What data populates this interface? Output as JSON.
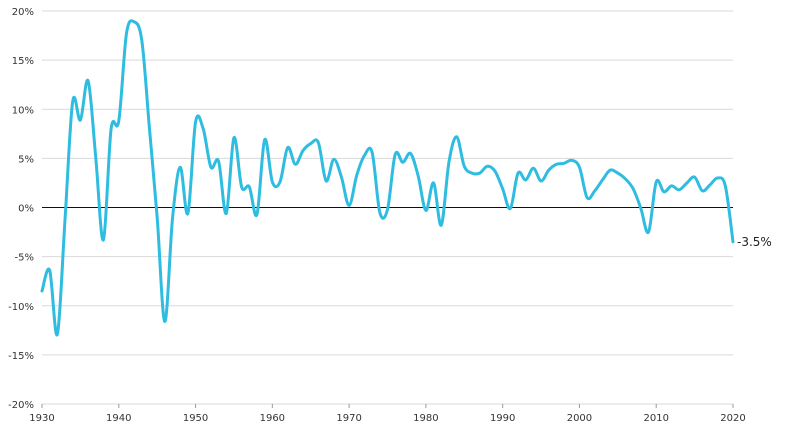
{
  "chart_data": {
    "type": "line",
    "title": "",
    "xlabel": "",
    "ylabel": "",
    "xlim": [
      1930,
      2020
    ],
    "ylim": [
      -20,
      20
    ],
    "x_ticks": [
      "1930",
      "1940",
      "1950",
      "1960",
      "1970",
      "1980",
      "1990",
      "2000",
      "2010",
      "2020"
    ],
    "y_ticks": [
      "20%",
      "15%",
      "10%",
      "5%",
      "0%",
      "-5%",
      "-10%",
      "-15%",
      "-20%"
    ],
    "grid": true,
    "legend": "none",
    "line_color": "#2ebde0",
    "end_label": "-3.5%",
    "series": [
      {
        "x": [
          1930,
          1931,
          1932,
          1933,
          1934,
          1935,
          1936,
          1937,
          1938,
          1939,
          1940,
          1941,
          1942,
          1943,
          1944,
          1945,
          1946,
          1947,
          1948,
          1949,
          1950,
          1951,
          1952,
          1953,
          1954,
          1955,
          1956,
          1957,
          1958,
          1959,
          1960,
          1961,
          1962,
          1963,
          1964,
          1965,
          1966,
          1967,
          1968,
          1969,
          1970,
          1971,
          1972,
          1973,
          1974,
          1975,
          1976,
          1977,
          1978,
          1979,
          1980,
          1981,
          1982,
          1983,
          1984,
          1985,
          1986,
          1987,
          1988,
          1989,
          1990,
          1991,
          1992,
          1993,
          1994,
          1995,
          1996,
          1997,
          1998,
          1999,
          2000,
          2001,
          2002,
          2003,
          2004,
          2005,
          2006,
          2007,
          2008,
          2009,
          2010,
          2011,
          2012,
          2013,
          2014,
          2015,
          2016,
          2017,
          2018,
          2019,
          2020
        ],
        "values": [
          -8.5,
          -6.4,
          -12.9,
          -1.2,
          10.8,
          8.9,
          12.9,
          5.1,
          -3.3,
          8.0,
          8.8,
          17.7,
          18.9,
          17.0,
          8.0,
          -1.0,
          -11.6,
          -1.1,
          4.1,
          -0.6,
          8.7,
          8.0,
          4.1,
          4.7,
          -0.6,
          7.1,
          2.1,
          2.1,
          -0.7,
          6.9,
          2.6,
          2.6,
          6.1,
          4.4,
          5.8,
          6.5,
          6.6,
          2.7,
          4.9,
          3.1,
          0.2,
          3.3,
          5.3,
          5.6,
          -0.5,
          -0.2,
          5.4,
          4.6,
          5.5,
          3.2,
          -0.3,
          2.5,
          -1.8,
          4.6,
          7.2,
          4.2,
          3.5,
          3.5,
          4.2,
          3.7,
          1.9,
          -0.1,
          3.5,
          2.8,
          4.0,
          2.7,
          3.8,
          4.4,
          4.5,
          4.8,
          4.1,
          1.0,
          1.7,
          2.8,
          3.8,
          3.5,
          2.9,
          1.9,
          -0.1,
          -2.5,
          2.6,
          1.6,
          2.2,
          1.8,
          2.5,
          3.1,
          1.7,
          2.3,
          3.0,
          2.2,
          -3.5
        ]
      }
    ]
  }
}
